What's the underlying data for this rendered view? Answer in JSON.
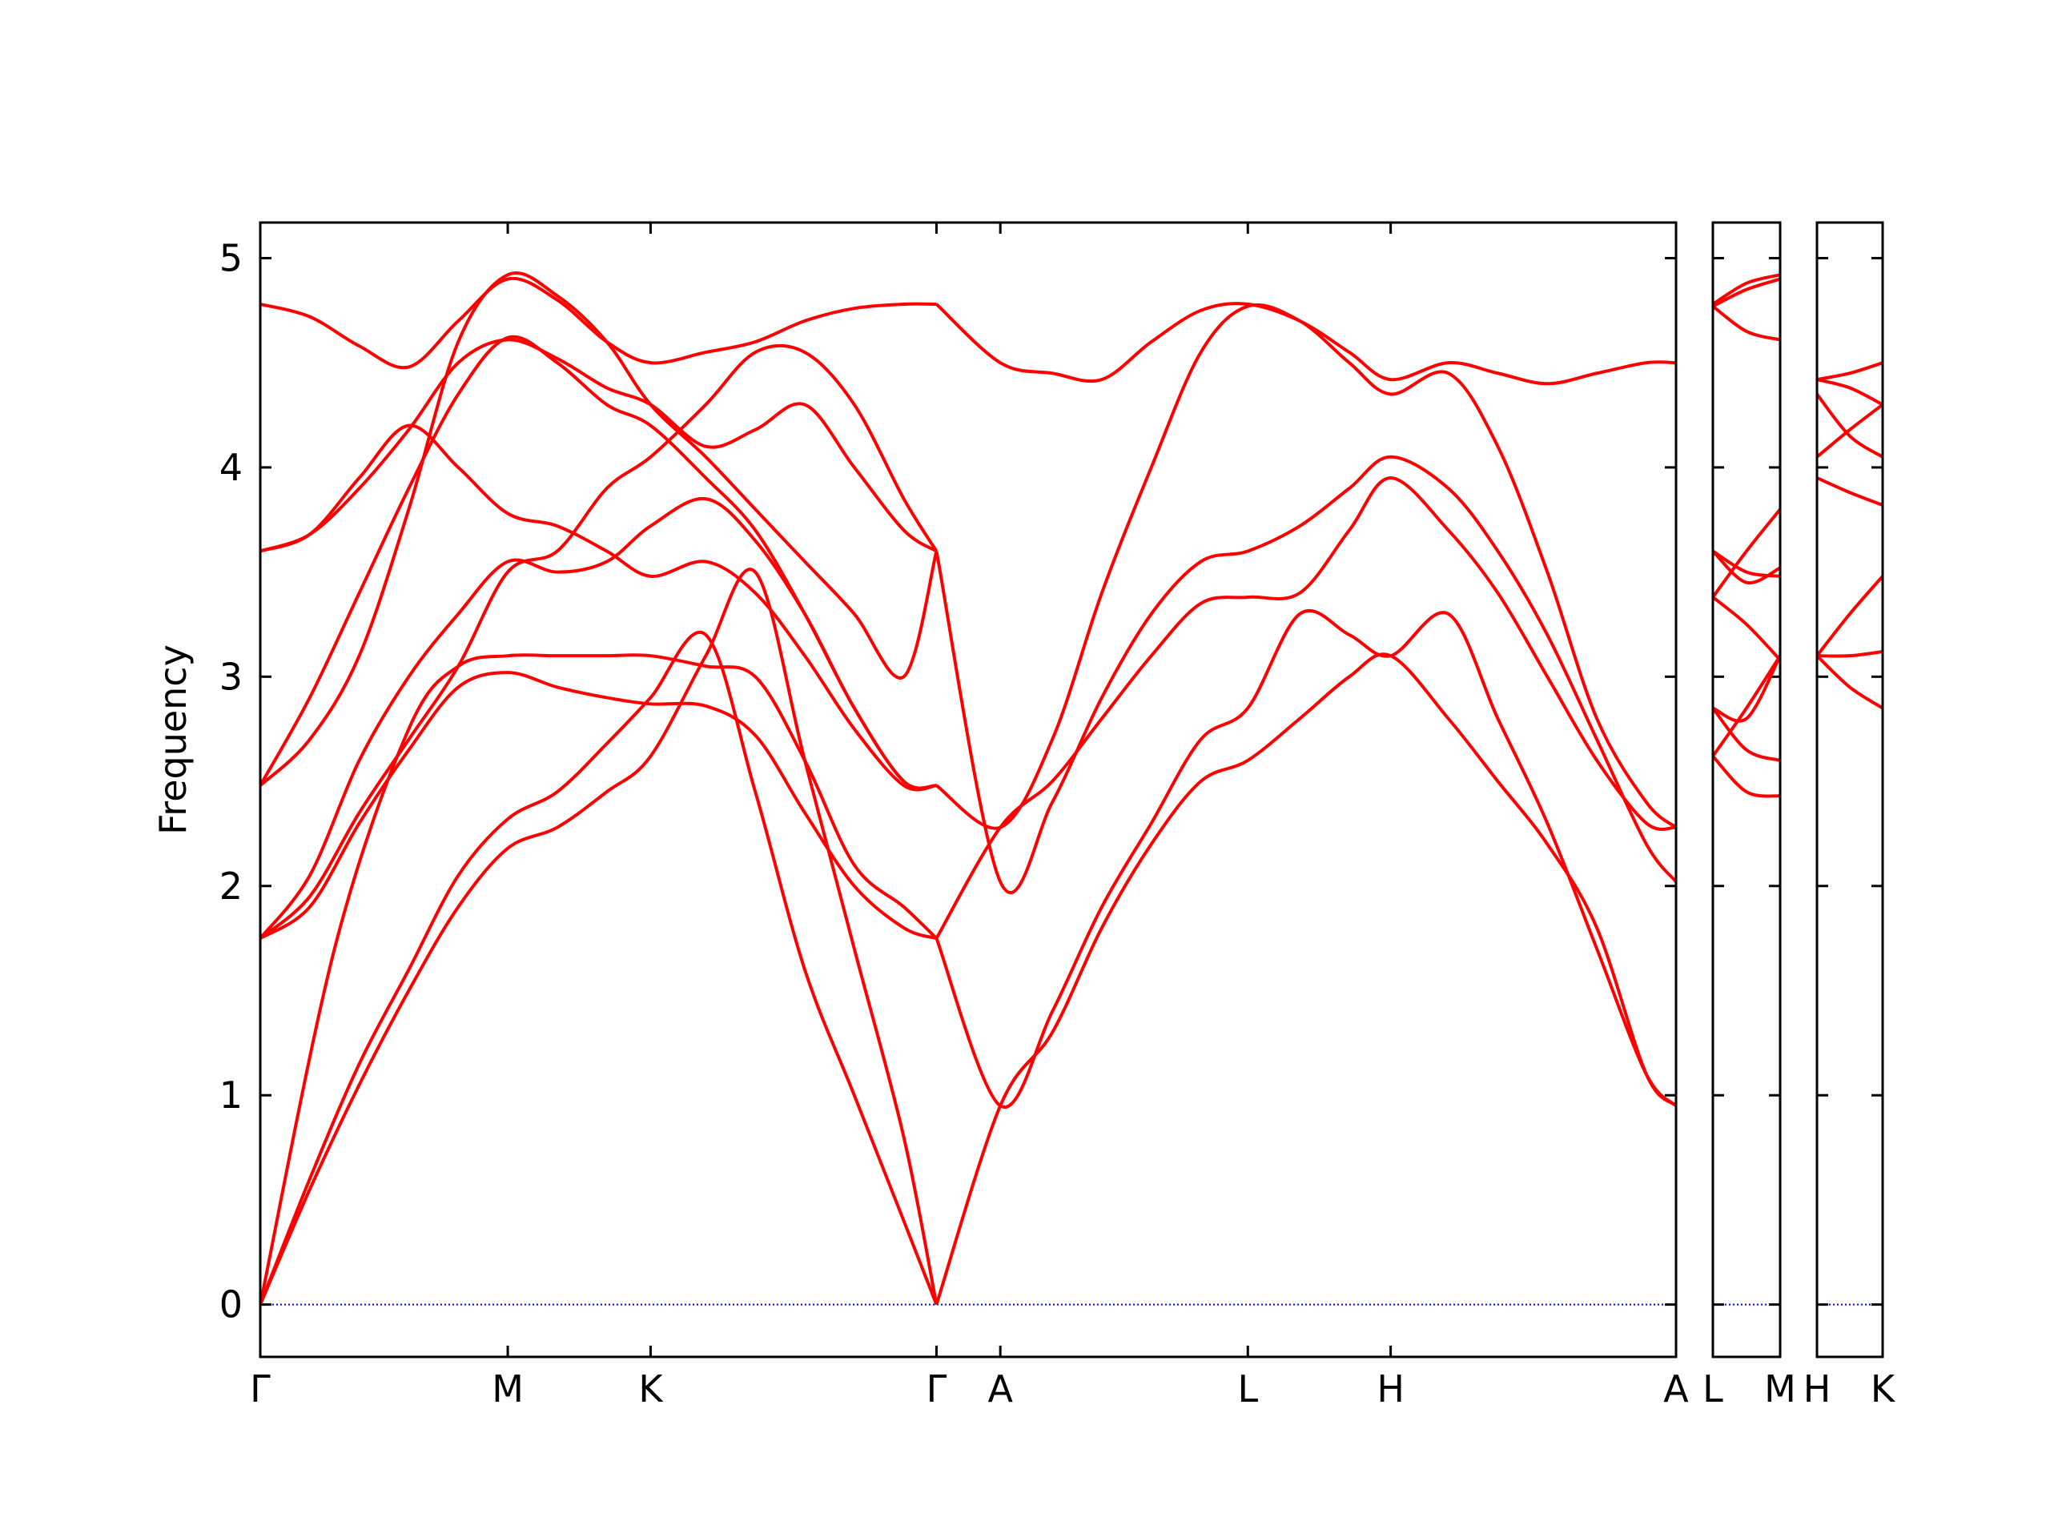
{
  "chart_data": {
    "type": "line",
    "title": "",
    "ylabel": "Frequency",
    "xlabel": "",
    "ylim": [
      -0.25,
      5.17
    ],
    "yticks": [
      0,
      1,
      2,
      3,
      4,
      5
    ],
    "colors": {
      "bands": "#ff0000",
      "zero_line": "#0000ff",
      "axes": "#000000"
    },
    "grid": false,
    "legend": "none",
    "panels": [
      {
        "xlim": [
          0,
          5.72
        ],
        "ticks": [
          {
            "x": 0,
            "label": "Γ"
          },
          {
            "x": 1.0,
            "label": "M"
          },
          {
            "x": 1.577,
            "label": "K"
          },
          {
            "x": 2.732,
            "label": "Γ"
          },
          {
            "x": 2.99,
            "label": "A"
          },
          {
            "x": 3.99,
            "label": "L"
          },
          {
            "x": 4.567,
            "label": "H"
          },
          {
            "x": 5.72,
            "label": "A"
          }
        ],
        "series": [
          {
            "x": [
              0,
              0.2,
              0.4,
              0.6,
              0.8,
              1.0,
              1.2,
              1.4,
              1.577,
              1.8,
              2.0,
              2.2,
              2.4,
              2.6,
              2.732
            ],
            "y": [
              0,
              0.55,
              1.05,
              1.5,
              1.9,
              2.18,
              2.28,
              2.45,
              2.62,
              3.1,
              3.5,
              2.6,
              1.7,
              0.8,
              0
            ]
          },
          {
            "x": [
              0,
              0.2,
              0.4,
              0.6,
              0.8,
              1.0,
              1.2,
              1.4,
              1.577,
              1.8,
              2.0,
              2.2,
              2.4,
              2.6,
              2.732
            ],
            "y": [
              0,
              0.6,
              1.15,
              1.6,
              2.05,
              2.32,
              2.45,
              2.68,
              2.9,
              3.2,
              2.45,
              1.6,
              1.0,
              0.4,
              0
            ]
          },
          {
            "x": [
              0,
              0.3,
              0.6,
              0.8,
              1.0,
              1.2,
              1.4,
              1.577,
              1.8,
              2.0,
              2.2,
              2.4,
              2.6,
              2.732
            ],
            "y": [
              0,
              1.7,
              2.75,
              3.05,
              3.1,
              3.1,
              3.1,
              3.1,
              3.05,
              3.0,
              2.6,
              2.1,
              1.9,
              1.75
            ]
          },
          {
            "x": [
              0,
              0.2,
              0.4,
              0.6,
              0.8,
              1.0,
              1.2,
              1.4,
              1.577,
              1.8,
              2.0,
              2.2,
              2.4,
              2.6,
              2.732
            ],
            "y": [
              1.75,
              1.9,
              2.3,
              2.65,
              2.95,
              3.02,
              2.95,
              2.9,
              2.87,
              2.86,
              2.72,
              2.35,
              2.0,
              1.8,
              1.75
            ]
          },
          {
            "x": [
              0,
              0.2,
              0.4,
              0.6,
              0.8,
              1.0,
              1.2,
              1.4,
              1.577,
              1.8,
              2.0,
              2.2,
              2.4,
              2.6,
              2.732
            ],
            "y": [
              1.75,
              2.05,
              2.6,
              3.0,
              3.3,
              3.55,
              3.5,
              3.55,
              3.72,
              3.85,
              3.65,
              3.3,
              2.85,
              2.5,
              2.48
            ]
          },
          {
            "x": [
              0,
              0.2,
              0.4,
              0.6,
              0.8,
              1.0,
              1.2,
              1.4,
              1.577,
              1.8,
              2.0,
              2.2,
              2.4,
              2.6,
              2.732
            ],
            "y": [
              2.48,
              2.9,
              3.4,
              3.9,
              4.35,
              4.62,
              4.5,
              4.3,
              4.2,
              3.95,
              3.7,
              3.3,
              2.85,
              2.5,
              2.48
            ]
          },
          {
            "x": [
              0,
              0.2,
              0.4,
              0.6,
              0.8,
              1.0,
              1.2,
              1.4,
              1.577,
              1.8,
              2.0,
              2.2,
              2.4,
              2.6,
              2.732
            ],
            "y": [
              3.6,
              3.68,
              3.95,
              4.2,
              4.0,
              3.78,
              3.72,
              3.6,
              3.48,
              3.55,
              3.4,
              3.1,
              2.75,
              2.48,
              2.48
            ]
          },
          {
            "x": [
              0,
              0.2,
              0.4,
              0.6,
              0.8,
              1.0,
              1.2,
              1.4,
              1.577,
              1.8,
              2.0,
              2.2,
              2.4,
              2.6,
              2.732
            ],
            "y": [
              3.6,
              3.68,
              3.9,
              4.18,
              4.5,
              4.61,
              4.52,
              4.38,
              4.3,
              4.1,
              4.18,
              4.3,
              4.0,
              3.7,
              3.6
            ]
          },
          {
            "x": [
              0,
              0.2,
              0.4,
              0.6,
              0.8,
              1.0,
              1.2,
              1.4,
              1.577,
              1.8,
              2.0,
              2.2,
              2.4,
              2.6,
              2.732
            ],
            "y": [
              4.78,
              4.72,
              4.58,
              4.48,
              4.7,
              4.9,
              4.8,
              4.6,
              4.5,
              4.55,
              4.6,
              4.7,
              4.76,
              4.78,
              4.78
            ]
          },
          {
            "x": [
              0,
              0.2,
              0.4,
              0.6,
              0.8,
              1.0,
              1.2,
              1.4,
              1.577,
              1.8,
              2.0,
              2.2,
              2.4,
              2.6,
              2.732
            ],
            "y": [
              1.75,
              1.95,
              2.35,
              2.7,
              3.05,
              3.5,
              3.6,
              3.9,
              4.05,
              4.3,
              4.55,
              4.55,
              4.3,
              3.85,
              3.6
            ]
          },
          {
            "x": [
              0,
              0.2,
              0.4,
              0.6,
              0.8,
              1.0,
              1.2,
              1.4,
              1.577,
              1.8,
              2.0,
              2.2,
              2.4,
              2.6,
              2.732
            ],
            "y": [
              2.48,
              2.7,
              3.1,
              3.8,
              4.6,
              4.92,
              4.82,
              4.6,
              4.3,
              4.05,
              3.8,
              3.55,
              3.3,
              3.0,
              3.6
            ]
          },
          {
            "x": [
              2.732,
              2.99,
              3.2,
              3.4,
              3.6,
              3.8,
              3.99,
              4.2,
              4.4,
              4.567,
              4.8,
              5.0,
              5.2,
              5.4,
              5.6,
              5.72
            ],
            "y": [
              0,
              0.95,
              1.3,
              1.8,
              2.2,
              2.5,
              2.6,
              2.8,
              3.0,
              3.1,
              2.8,
              2.5,
              2.2,
              1.8,
              1.1,
              0.95
            ]
          },
          {
            "x": [
              2.732,
              2.99,
              3.2,
              3.4,
              3.6,
              3.8,
              3.99,
              4.2,
              4.4,
              4.567,
              4.8,
              5.0,
              5.2,
              5.4,
              5.6,
              5.72
            ],
            "y": [
              1.75,
              0.95,
              1.4,
              1.9,
              2.3,
              2.7,
              2.85,
              3.3,
              3.2,
              3.1,
              3.3,
              2.8,
              2.3,
              1.7,
              1.1,
              0.95
            ]
          },
          {
            "x": [
              2.732,
              2.99,
              3.2,
              3.4,
              3.6,
              3.8,
              3.99,
              4.2,
              4.4,
              4.567,
              4.8,
              5.0,
              5.2,
              5.4,
              5.6,
              5.72
            ],
            "y": [
              3.6,
              2.02,
              2.4,
              2.9,
              3.3,
              3.55,
              3.6,
              3.72,
              3.9,
              4.05,
              3.9,
              3.6,
              3.2,
              2.7,
              2.2,
              2.02
            ]
          },
          {
            "x": [
              2.732,
              2.99,
              3.2,
              3.4,
              3.6,
              3.8,
              3.99,
              4.2,
              4.4,
              4.567,
              4.8,
              5.0,
              5.2,
              5.4,
              5.6,
              5.72
            ],
            "y": [
              1.75,
              2.28,
              2.5,
              2.8,
              3.1,
              3.35,
              3.38,
              3.4,
              3.7,
              3.95,
              3.7,
              3.4,
              3.0,
              2.6,
              2.3,
              2.28
            ]
          },
          {
            "x": [
              2.732,
              2.99,
              3.2,
              3.4,
              3.6,
              3.8,
              3.99,
              4.2,
              4.4,
              4.567,
              4.8,
              5.0,
              5.2,
              5.4,
              5.6,
              5.72
            ],
            "y": [
              2.48,
              2.28,
              2.7,
              3.4,
              4.0,
              4.55,
              4.77,
              4.7,
              4.5,
              4.35,
              4.45,
              4.1,
              3.5,
              2.8,
              2.4,
              2.28
            ]
          },
          {
            "x": [
              2.732,
              2.99,
              3.2,
              3.4,
              3.6,
              3.8,
              3.99,
              4.2,
              4.4,
              4.567,
              4.8,
              5.0,
              5.2,
              5.4,
              5.6,
              5.72
            ],
            "y": [
              4.78,
              4.5,
              4.45,
              4.42,
              4.6,
              4.75,
              4.78,
              4.7,
              4.55,
              4.42,
              4.5,
              4.45,
              4.4,
              4.45,
              4.5,
              4.5
            ]
          }
        ]
      },
      {
        "xlim": [
          0,
          1
        ],
        "ticks": [
          {
            "x": 0,
            "label": "L"
          },
          {
            "x": 1,
            "label": "M"
          }
        ],
        "series": [
          {
            "x": [
              0,
              0.5,
              1
            ],
            "y": [
              2.62,
              2.85,
              3.1
            ]
          },
          {
            "x": [
              0,
              0.5,
              1
            ],
            "y": [
              2.62,
              2.45,
              2.43
            ]
          },
          {
            "x": [
              0,
              0.5,
              1
            ],
            "y": [
              2.85,
              2.8,
              3.1
            ]
          },
          {
            "x": [
              0,
              0.5,
              1
            ],
            "y": [
              2.85,
              2.65,
              2.6
            ]
          },
          {
            "x": [
              0,
              0.5,
              1
            ],
            "y": [
              3.38,
              3.25,
              3.08
            ]
          },
          {
            "x": [
              0,
              0.5,
              1
            ],
            "y": [
              3.38,
              3.6,
              3.8
            ]
          },
          {
            "x": [
              0,
              0.5,
              1
            ],
            "y": [
              3.6,
              3.5,
              3.48
            ]
          },
          {
            "x": [
              0,
              0.5,
              1
            ],
            "y": [
              3.6,
              3.45,
              3.52
            ]
          },
          {
            "x": [
              0,
              0.5,
              1
            ],
            "y": [
              4.77,
              4.85,
              4.9
            ]
          },
          {
            "x": [
              0,
              0.5,
              1
            ],
            "y": [
              4.77,
              4.65,
              4.61
            ]
          },
          {
            "x": [
              0,
              0.5,
              1
            ],
            "y": [
              4.78,
              4.88,
              4.92
            ]
          }
        ]
      },
      {
        "xlim": [
          0,
          1
        ],
        "ticks": [
          {
            "x": 0,
            "label": "H"
          },
          {
            "x": 1,
            "label": "K"
          }
        ],
        "series": [
          {
            "x": [
              0,
              0.5,
              1
            ],
            "y": [
              3.1,
              3.1,
              3.12
            ]
          },
          {
            "x": [
              0,
              0.5,
              1
            ],
            "y": [
              3.1,
              2.95,
              2.85
            ]
          },
          {
            "x": [
              0,
              0.5,
              1
            ],
            "y": [
              3.1,
              3.3,
              3.48
            ]
          },
          {
            "x": [
              0,
              0.5,
              1
            ],
            "y": [
              3.95,
              3.88,
              3.82
            ]
          },
          {
            "x": [
              0,
              0.5,
              1
            ],
            "y": [
              4.05,
              4.18,
              4.3
            ]
          },
          {
            "x": [
              0,
              0.5,
              1
            ],
            "y": [
              4.35,
              4.15,
              4.05
            ]
          },
          {
            "x": [
              0,
              0.5,
              1
            ],
            "y": [
              4.42,
              4.38,
              4.3
            ]
          },
          {
            "x": [
              0,
              0.5,
              1
            ],
            "y": [
              4.42,
              4.45,
              4.5
            ]
          }
        ]
      }
    ]
  }
}
